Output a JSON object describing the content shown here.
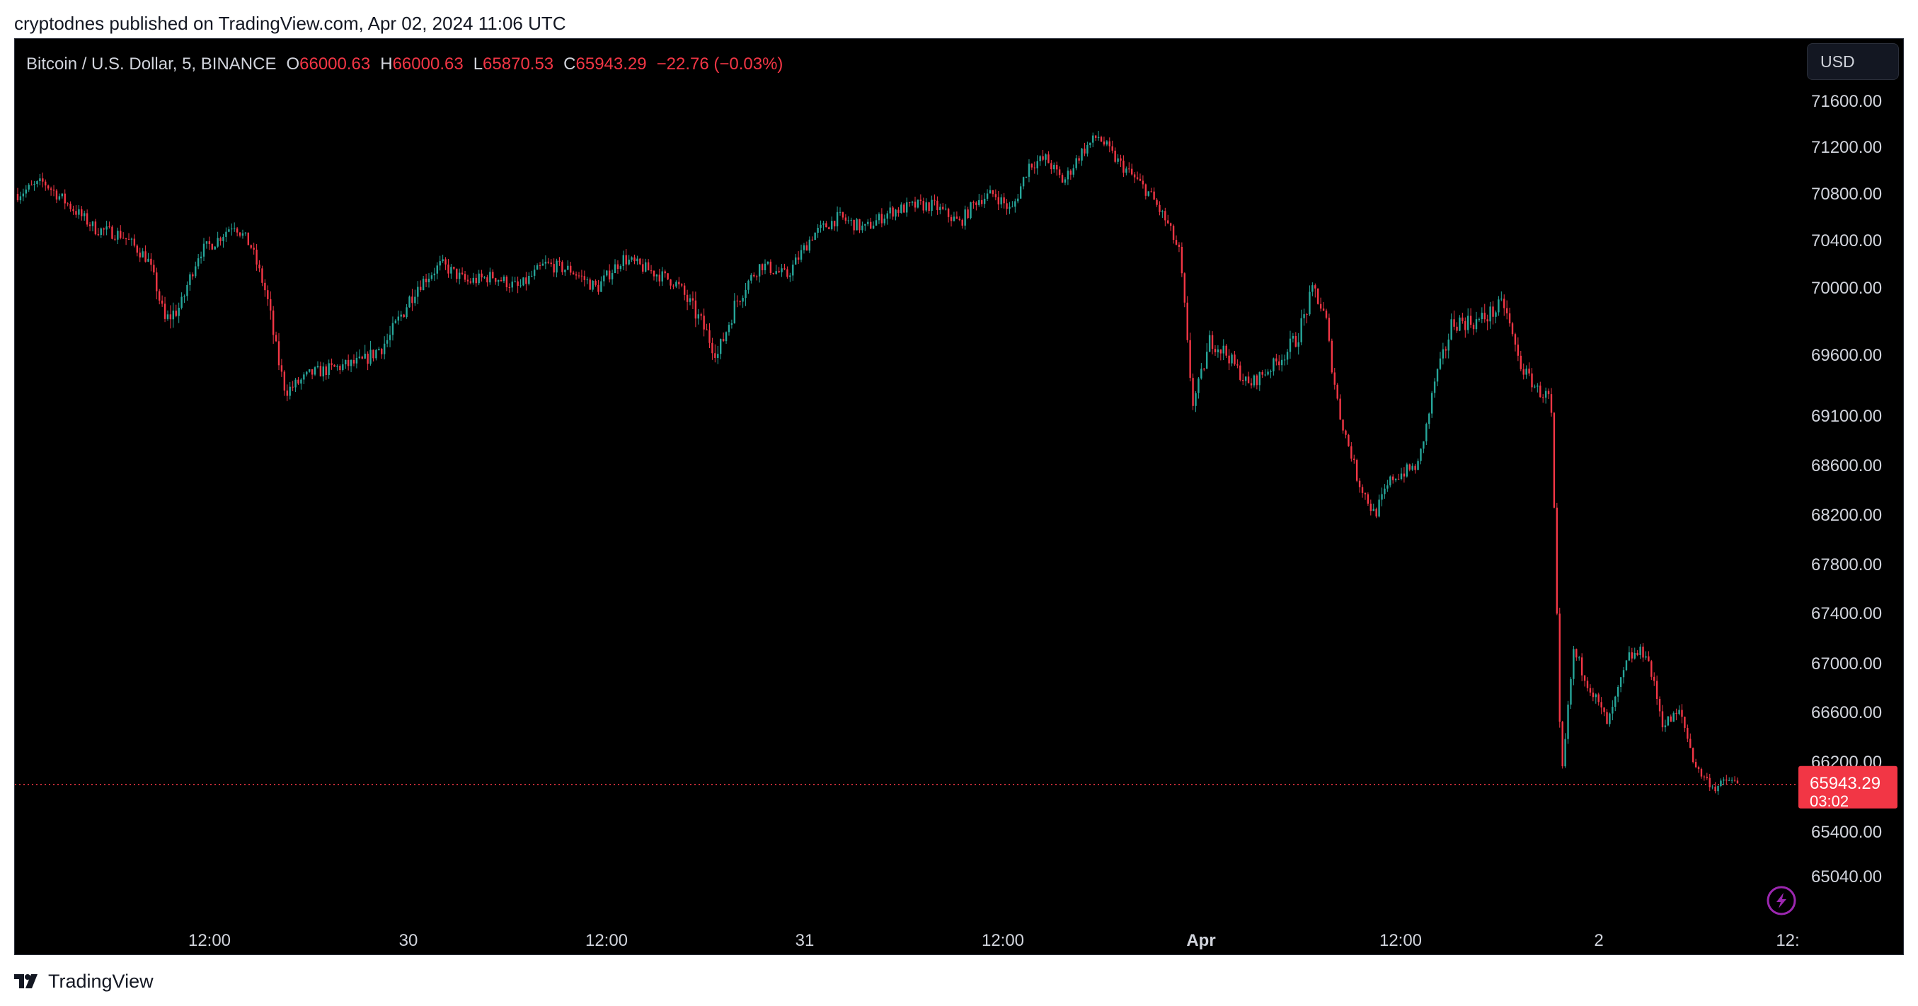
{
  "published": "cryptodnes published on TradingView.com, Apr 02, 2024 11:06 UTC",
  "header": {
    "symbol": "Bitcoin / U.S. Dollar, 5, BINANCE",
    "o_label": "O",
    "o_value": "66000.63",
    "h_label": "H",
    "h_value": "66000.63",
    "l_label": "L",
    "l_value": "65870.53",
    "c_label": "C",
    "c_value": "65943.29",
    "change": "−22.76 (−0.03%)"
  },
  "currency_button": "USD",
  "price_label": {
    "value": "65943.29",
    "countdown": "03:02"
  },
  "brand": "TradingView",
  "colors": {
    "up": "#26a69a",
    "down": "#f23645",
    "background": "#000000",
    "axis_text": "#d1d4dc",
    "lightning": "#9c27b0"
  },
  "icons": [
    "tradingview-logo-icon",
    "lightning-icon"
  ],
  "chart_data": {
    "type": "candlestick",
    "interval": "5",
    "y_ticks": [
      "71600.00",
      "71200.00",
      "70800.00",
      "70400.00",
      "70000.00",
      "69600.00",
      "69100.00",
      "68600.00",
      "68200.00",
      "67800.00",
      "67400.00",
      "67000.00",
      "66600.00",
      "66200.00",
      "65400.00",
      "65040.00"
    ],
    "x_ticks": [
      {
        "label": "12:00",
        "bold": false
      },
      {
        "label": "30",
        "bold": false
      },
      {
        "label": "12:00",
        "bold": false
      },
      {
        "label": "31",
        "bold": false
      },
      {
        "label": "12:00",
        "bold": false
      },
      {
        "label": "Apr",
        "bold": true
      },
      {
        "label": "12:00",
        "bold": false
      },
      {
        "label": "2",
        "bold": false
      },
      {
        "label": "12:",
        "bold": false
      }
    ],
    "ylim": [
      64800,
      71750
    ],
    "last_price": 65943.29,
    "price_path": [
      [
        0,
        70800
      ],
      [
        0.015,
        70900
      ],
      [
        0.03,
        70700
      ],
      [
        0.045,
        70500
      ],
      [
        0.06,
        70450
      ],
      [
        0.075,
        70250
      ],
      [
        0.085,
        69800
      ],
      [
        0.095,
        69900
      ],
      [
        0.105,
        70300
      ],
      [
        0.115,
        70400
      ],
      [
        0.125,
        70550
      ],
      [
        0.135,
        70350
      ],
      [
        0.145,
        69900
      ],
      [
        0.155,
        69300
      ],
      [
        0.17,
        69450
      ],
      [
        0.185,
        69500
      ],
      [
        0.2,
        69550
      ],
      [
        0.215,
        69700
      ],
      [
        0.23,
        70000
      ],
      [
        0.245,
        70200
      ],
      [
        0.26,
        70050
      ],
      [
        0.275,
        70100
      ],
      [
        0.29,
        70000
      ],
      [
        0.305,
        70200
      ],
      [
        0.32,
        70150
      ],
      [
        0.335,
        70000
      ],
      [
        0.35,
        70250
      ],
      [
        0.365,
        70150
      ],
      [
        0.38,
        70050
      ],
      [
        0.395,
        69800
      ],
      [
        0.405,
        69600
      ],
      [
        0.415,
        69900
      ],
      [
        0.43,
        70200
      ],
      [
        0.445,
        70100
      ],
      [
        0.46,
        70450
      ],
      [
        0.475,
        70600
      ],
      [
        0.49,
        70500
      ],
      [
        0.505,
        70650
      ],
      [
        0.52,
        70700
      ],
      [
        0.53,
        70700
      ],
      [
        0.545,
        70550
      ],
      [
        0.555,
        70750
      ],
      [
        0.565,
        70800
      ],
      [
        0.575,
        70650
      ],
      [
        0.585,
        71050
      ],
      [
        0.595,
        71100
      ],
      [
        0.605,
        70900
      ],
      [
        0.615,
        71150
      ],
      [
        0.625,
        71300
      ],
      [
        0.635,
        71100
      ],
      [
        0.645,
        70950
      ],
      [
        0.655,
        70800
      ],
      [
        0.665,
        70550
      ],
      [
        0.672,
        70300
      ],
      [
        0.68,
        69200
      ],
      [
        0.69,
        69700
      ],
      [
        0.7,
        69600
      ],
      [
        0.712,
        69350
      ],
      [
        0.725,
        69500
      ],
      [
        0.74,
        69700
      ],
      [
        0.75,
        70000
      ],
      [
        0.757,
        69800
      ],
      [
        0.765,
        69100
      ],
      [
        0.775,
        68500
      ],
      [
        0.785,
        68200
      ],
      [
        0.795,
        68500
      ],
      [
        0.81,
        68600
      ],
      [
        0.82,
        69400
      ],
      [
        0.83,
        69800
      ],
      [
        0.845,
        69800
      ],
      [
        0.86,
        69900
      ],
      [
        0.87,
        69500
      ],
      [
        0.88,
        69300
      ],
      [
        0.887,
        69250
      ],
      [
        0.893,
        66000
      ],
      [
        0.9,
        67100
      ],
      [
        0.91,
        66800
      ],
      [
        0.92,
        66500
      ],
      [
        0.932,
        67050
      ],
      [
        0.942,
        67100
      ],
      [
        0.952,
        66500
      ],
      [
        0.962,
        66600
      ],
      [
        0.972,
        66100
      ],
      [
        0.982,
        65900
      ],
      [
        0.99,
        66000
      ],
      [
        0.995,
        65943
      ]
    ]
  }
}
